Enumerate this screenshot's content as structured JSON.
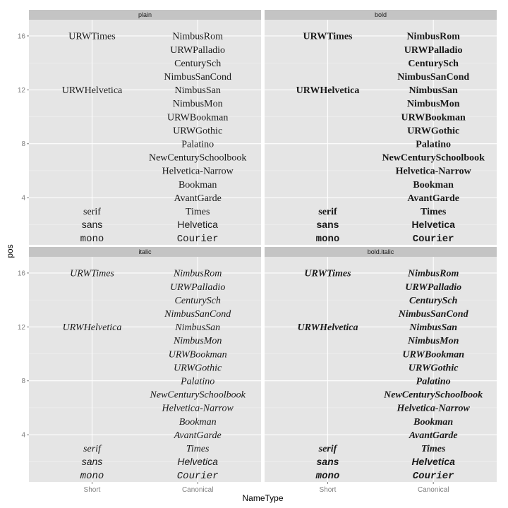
{
  "chart_data": {
    "type": "table",
    "title": "",
    "xlabel": "NameType",
    "ylabel": "pos",
    "x_categories": [
      "Short",
      "Canonical"
    ],
    "ylim": [
      0.5,
      17.2
    ],
    "y_ticks": [
      4,
      8,
      12,
      16
    ],
    "grid": true,
    "facets": [
      {
        "name": "plain",
        "style": "plain"
      },
      {
        "name": "bold",
        "style": "bold"
      },
      {
        "name": "italic",
        "style": "italic"
      },
      {
        "name": "bold.italic",
        "style": "bold.italic"
      }
    ],
    "labels": [
      {
        "x": "Short",
        "pos": 16,
        "text": "URWTimes",
        "font": "serif"
      },
      {
        "x": "Short",
        "pos": 12,
        "text": "URWHelvetica",
        "font": "serif"
      },
      {
        "x": "Short",
        "pos": 3,
        "text": "serif",
        "font": "serif"
      },
      {
        "x": "Short",
        "pos": 2,
        "text": "sans",
        "font": "sans"
      },
      {
        "x": "Short",
        "pos": 1,
        "text": "mono",
        "font": "mono"
      },
      {
        "x": "Canonical",
        "pos": 16,
        "text": "NimbusRom",
        "font": "serif"
      },
      {
        "x": "Canonical",
        "pos": 15,
        "text": "URWPalladio",
        "font": "serif"
      },
      {
        "x": "Canonical",
        "pos": 14,
        "text": "CenturySch",
        "font": "serif"
      },
      {
        "x": "Canonical",
        "pos": 13,
        "text": "NimbusSanCond",
        "font": "serif"
      },
      {
        "x": "Canonical",
        "pos": 12,
        "text": "NimbusSan",
        "font": "serif"
      },
      {
        "x": "Canonical",
        "pos": 11,
        "text": "NimbusMon",
        "font": "serif"
      },
      {
        "x": "Canonical",
        "pos": 10,
        "text": "URWBookman",
        "font": "serif"
      },
      {
        "x": "Canonical",
        "pos": 9,
        "text": "URWGothic",
        "font": "serif"
      },
      {
        "x": "Canonical",
        "pos": 8,
        "text": "Palatino",
        "font": "serif"
      },
      {
        "x": "Canonical",
        "pos": 7,
        "text": "NewCenturySchoolbook",
        "font": "serif"
      },
      {
        "x": "Canonical",
        "pos": 6,
        "text": "Helvetica-Narrow",
        "font": "serif"
      },
      {
        "x": "Canonical",
        "pos": 5,
        "text": "Bookman",
        "font": "serif"
      },
      {
        "x": "Canonical",
        "pos": 4,
        "text": "AvantGarde",
        "font": "serif"
      },
      {
        "x": "Canonical",
        "pos": 3,
        "text": "Times",
        "font": "serif"
      },
      {
        "x": "Canonical",
        "pos": 2,
        "text": "Helvetica",
        "font": "sans"
      },
      {
        "x": "Canonical",
        "pos": 1,
        "text": "Courier",
        "font": "mono"
      }
    ],
    "colors": {
      "panel_background": "#e5e5e5",
      "strip_background": "#c4c4c4",
      "grid_major": "#ffffff",
      "grid_minor": "#f2f2f2",
      "text": "#1a1a1a"
    }
  }
}
